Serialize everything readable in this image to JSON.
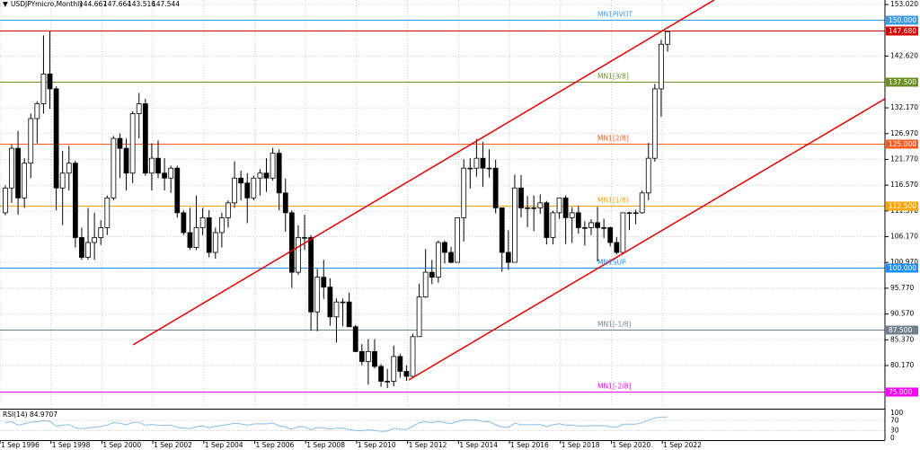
{
  "chart_data": {
    "type": "candlestick",
    "symbol_label": "USDJPYmicro,Monthly",
    "header_prices": [
      144.667,
      147.664,
      143.516,
      147.544
    ],
    "xlim": [
      1996.667,
      2031.41
    ],
    "ylim": [
      71.47,
      153.93
    ],
    "grid": true,
    "xticks": [
      {
        "value": 1996.667,
        "label": "1 Sep 1996"
      },
      {
        "value": 1998.667,
        "label": "1 Sep 1998"
      },
      {
        "value": 2000.667,
        "label": "1 Sep 2000"
      },
      {
        "value": 2002.667,
        "label": "1 Sep 2002"
      },
      {
        "value": 2004.667,
        "label": "1 Sep 2004"
      },
      {
        "value": 2006.667,
        "label": "1 Sep 2006"
      },
      {
        "value": 2008.667,
        "label": "1 Sep 2008"
      },
      {
        "value": 2010.667,
        "label": "1 Sep 2010"
      },
      {
        "value": 2012.667,
        "label": "1 Sep 2012"
      },
      {
        "value": 2014.667,
        "label": "1 Sep 2014"
      },
      {
        "value": 2016.667,
        "label": "1 Sep 2016"
      },
      {
        "value": 2018.667,
        "label": "1 Sep 2018"
      },
      {
        "value": 2020.667,
        "label": "1 Sep 2020"
      },
      {
        "value": 2022.667,
        "label": "1 Sep 2022"
      }
    ],
    "yticks": [
      {
        "value": 153.02,
        "label": "153.020"
      },
      {
        "value": 142.62,
        "label": "142.620"
      },
      {
        "value": 132.17,
        "label": "132.170"
      },
      {
        "value": 126.97,
        "label": "126.970"
      },
      {
        "value": 121.77,
        "label": "121.770"
      },
      {
        "value": 116.57,
        "label": "116.570"
      },
      {
        "value": 111.37,
        "label": "111.370"
      },
      {
        "value": 106.17,
        "label": "106.170"
      },
      {
        "value": 100.97,
        "label": "100.970"
      },
      {
        "value": 95.77,
        "label": "95.770"
      },
      {
        "value": 90.57,
        "label": "90.570"
      },
      {
        "value": 85.37,
        "label": "85.370"
      },
      {
        "value": 80.17,
        "label": "80.170"
      }
    ],
    "x": [
      1996.875,
      1997.125,
      1997.375,
      1997.625,
      1997.875,
      1998.125,
      1998.375,
      1998.625,
      1998.875,
      1999.125,
      1999.375,
      1999.625,
      1999.875,
      2000.125,
      2000.375,
      2000.625,
      2000.875,
      2001.125,
      2001.375,
      2001.625,
      2001.875,
      2002.125,
      2002.375,
      2002.625,
      2002.875,
      2003.125,
      2003.375,
      2003.625,
      2003.875,
      2004.125,
      2004.375,
      2004.625,
      2004.875,
      2005.125,
      2005.375,
      2005.625,
      2005.875,
      2006.125,
      2006.375,
      2006.625,
      2006.875,
      2007.125,
      2007.375,
      2007.625,
      2007.875,
      2008.125,
      2008.375,
      2008.625,
      2008.875,
      2009.125,
      2009.375,
      2009.625,
      2009.875,
      2010.125,
      2010.375,
      2010.625,
      2010.875,
      2011.125,
      2011.375,
      2011.625,
      2011.875,
      2012.125,
      2012.375,
      2012.625,
      2012.875,
      2013.125,
      2013.375,
      2013.625,
      2013.875,
      2014.125,
      2014.375,
      2014.625,
      2014.875,
      2015.125,
      2015.375,
      2015.625,
      2015.875,
      2016.125,
      2016.375,
      2016.625,
      2016.875,
      2017.125,
      2017.375,
      2017.625,
      2017.875,
      2018.125,
      2018.375,
      2018.625,
      2018.875,
      2019.125,
      2019.375,
      2019.625,
      2019.875,
      2020.125,
      2020.375,
      2020.625,
      2020.875,
      2021.125,
      2021.375,
      2021.625,
      2021.875,
      2022.125,
      2022.375,
      2022.625,
      2022.875
    ],
    "ohlc": [
      [
        111,
        116.5,
        110.5,
        116
      ],
      [
        116,
        124.8,
        113,
        124
      ],
      [
        124,
        127.5,
        110.6,
        114
      ],
      [
        114,
        122,
        112,
        121
      ],
      [
        121,
        131,
        118,
        130
      ],
      [
        130,
        133.5,
        125,
        133
      ],
      [
        133,
        146.8,
        131,
        139
      ],
      [
        139,
        147.6,
        132,
        136
      ],
      [
        136,
        136.5,
        111.5,
        116
      ],
      [
        116,
        123.5,
        108.5,
        119
      ],
      [
        119,
        124.5,
        115.5,
        121
      ],
      [
        121,
        121.5,
        104,
        106
      ],
      [
        106,
        108,
        101.5,
        102
      ],
      [
        102,
        112,
        101.5,
        105
      ],
      [
        105,
        111,
        101.5,
        106
      ],
      [
        106,
        109.5,
        104.5,
        108
      ],
      [
        108,
        114.5,
        106.5,
        114
      ],
      [
        114,
        126.5,
        113.5,
        126
      ],
      [
        126,
        127,
        118,
        124
      ],
      [
        124,
        126,
        115.5,
        119
      ],
      [
        119,
        131.5,
        117,
        131
      ],
      [
        131,
        135.2,
        126,
        133
      ],
      [
        133,
        134,
        118.5,
        119
      ],
      [
        119,
        125,
        115.5,
        122
      ],
      [
        122,
        125.6,
        118,
        119
      ],
      [
        119,
        122,
        115.5,
        118
      ],
      [
        118,
        120.5,
        115,
        120
      ],
      [
        120,
        120.5,
        110,
        111
      ],
      [
        111,
        111.5,
        106.5,
        107
      ],
      [
        107,
        112,
        103.5,
        104
      ],
      [
        104,
        114.5,
        103.5,
        108
      ],
      [
        108,
        112,
        106.5,
        110
      ],
      [
        110,
        111.5,
        102,
        103
      ],
      [
        103,
        108,
        101.7,
        107
      ],
      [
        107,
        111,
        104,
        110
      ],
      [
        110,
        113.5,
        108,
        113
      ],
      [
        113,
        121.4,
        112,
        118
      ],
      [
        118,
        119.5,
        113.5,
        117
      ],
      [
        117,
        119,
        108.9,
        114
      ],
      [
        114,
        118.5,
        113.5,
        118
      ],
      [
        118,
        119.8,
        114.5,
        119
      ],
      [
        119,
        122,
        115.2,
        118
      ],
      [
        118,
        124.1,
        117.5,
        123
      ],
      [
        123,
        123.8,
        111.5,
        115
      ],
      [
        115,
        117.9,
        107.2,
        111
      ],
      [
        111,
        111.5,
        95.8,
        99
      ],
      [
        99,
        108.5,
        98.5,
        106
      ],
      [
        106,
        110.6,
        103.5,
        106
      ],
      [
        106,
        106.5,
        87.2,
        91
      ],
      [
        91,
        99.7,
        87.1,
        98
      ],
      [
        98,
        101.5,
        93.6,
        96
      ],
      [
        96,
        97.8,
        88.2,
        90
      ],
      [
        90,
        93.7,
        84.8,
        93
      ],
      [
        93,
        93.7,
        88.1,
        93
      ],
      [
        93,
        94.9,
        88,
        88
      ],
      [
        88,
        88.4,
        82.9,
        83
      ],
      [
        83,
        84.5,
        80.2,
        81
      ],
      [
        81,
        85.5,
        76.3,
        83
      ],
      [
        83,
        85.5,
        79.6,
        80
      ],
      [
        80,
        80.5,
        75.9,
        77
      ],
      [
        77,
        79.5,
        75.6,
        77
      ],
      [
        77,
        84.2,
        76,
        82
      ],
      [
        82,
        82.5,
        77.7,
        79
      ],
      [
        79,
        80.2,
        77.1,
        78
      ],
      [
        78,
        86.6,
        77.9,
        86
      ],
      [
        86,
        96.7,
        86,
        94
      ],
      [
        94,
        103.7,
        93.8,
        99
      ],
      [
        99,
        101.5,
        96.6,
        98
      ],
      [
        98,
        105.4,
        96.9,
        105
      ],
      [
        105,
        105.4,
        100.8,
        103
      ],
      [
        103,
        104.1,
        100.8,
        101
      ],
      [
        101,
        110,
        101.1,
        110
      ],
      [
        110,
        121.8,
        105.2,
        120
      ],
      [
        120,
        122,
        115.9,
        120
      ],
      [
        120,
        125.9,
        118.3,
        122
      ],
      [
        122,
        125.3,
        116.2,
        120
      ],
      [
        120,
        123.8,
        118.1,
        120
      ],
      [
        120,
        121.7,
        110.9,
        112
      ],
      [
        112,
        112,
        99.1,
        103
      ],
      [
        103,
        107.5,
        99.5,
        101
      ],
      [
        101,
        118.7,
        101.2,
        116
      ],
      [
        116,
        118.6,
        110.1,
        112
      ],
      [
        112,
        114.4,
        108.1,
        112
      ],
      [
        112,
        114.5,
        107.3,
        112
      ],
      [
        112,
        114.7,
        110.8,
        113
      ],
      [
        113,
        113.4,
        104.6,
        106
      ],
      [
        106,
        111.4,
        104.6,
        111
      ],
      [
        111,
        113.7,
        109.8,
        114
      ],
      [
        114,
        114.5,
        104.7,
        110
      ],
      [
        110,
        112.1,
        104.9,
        111
      ],
      [
        111,
        112.4,
        106.8,
        108
      ],
      [
        108,
        109.3,
        104.4,
        108
      ],
      [
        108,
        109.7,
        106.5,
        109
      ],
      [
        109,
        112.2,
        101.2,
        108
      ],
      [
        108,
        109.8,
        105.9,
        108
      ],
      [
        108,
        108.2,
        104.2,
        105
      ],
      [
        105,
        106.1,
        102.6,
        103
      ],
      [
        103,
        110.9,
        102.6,
        111
      ],
      [
        111,
        111.2,
        107.5,
        111
      ],
      [
        111,
        111.6,
        108.7,
        111
      ],
      [
        111,
        115.5,
        110.8,
        115
      ],
      [
        115,
        125.1,
        113.5,
        122
      ],
      [
        122,
        137,
        121.3,
        136
      ],
      [
        136,
        145.9,
        130.4,
        145
      ],
      [
        145,
        147.664,
        143.516,
        147.544
      ]
    ],
    "levels": [
      {
        "name": "MN1PIVOT",
        "value": 150,
        "value_label": "150.000",
        "color": "#3d9be9"
      },
      {
        "name": "",
        "value": 147.68,
        "value_label": "147.680",
        "color": "#d40000"
      },
      {
        "name": "MN1[3/8]",
        "value": 137.5,
        "value_label": "137.500",
        "color": "#6b8e23"
      },
      {
        "name": "MN1[2/8]",
        "value": 125,
        "value_label": "125.000",
        "color": "#ff5a1f"
      },
      {
        "name": "MN1[1/8]",
        "value": 112.5,
        "value_label": "112.500",
        "color": "#ffa500"
      },
      {
        "name": "MN1SUP",
        "value": 100,
        "value_label": "100.000",
        "color": "#1e8fff"
      },
      {
        "name": "MN1[-1/8]",
        "value": 87.5,
        "value_label": "87.500",
        "color": "#708090"
      },
      {
        "name": "MN1[-2/8]",
        "value": 75,
        "value_label": "75.000",
        "color": "#ff00ff"
      }
    ],
    "trendlines": [
      {
        "color": "#e00000",
        "points": [
          [
            2001.89,
            84.34
          ],
          [
            2024.71,
            153.93
          ]
        ]
      },
      {
        "color": "#e00000",
        "points": [
          [
            2012.72,
            77.27
          ],
          [
            2031.41,
            133.99
          ]
        ]
      }
    ],
    "indicator": {
      "name": "RSI(14)",
      "last": 84.9707,
      "color": "#87bde8",
      "ylim": [
        0,
        100
      ],
      "yticks": [
        0,
        30,
        70,
        100
      ],
      "values": [
        62,
        66,
        52,
        58,
        64,
        66,
        70,
        68,
        48,
        52,
        55,
        42,
        38,
        42,
        44,
        47,
        53,
        62,
        60,
        54,
        63,
        64,
        52,
        55,
        52,
        51,
        53,
        44,
        41,
        39,
        46,
        49,
        42,
        47,
        51,
        55,
        60,
        57,
        52,
        57,
        58,
        57,
        61,
        50,
        45,
        36,
        46,
        46,
        34,
        43,
        41,
        36,
        40,
        40,
        35,
        31,
        30,
        34,
        31,
        28,
        29,
        40,
        36,
        35,
        48,
        62,
        66,
        62,
        68,
        62,
        59,
        66,
        74,
        72,
        73,
        67,
        66,
        54,
        45,
        44,
        60,
        54,
        54,
        54,
        55,
        47,
        54,
        58,
        52,
        53,
        49,
        49,
        51,
        50,
        50,
        46,
        44,
        56,
        56,
        56,
        62,
        72,
        81,
        85,
        84.9707
      ]
    }
  }
}
